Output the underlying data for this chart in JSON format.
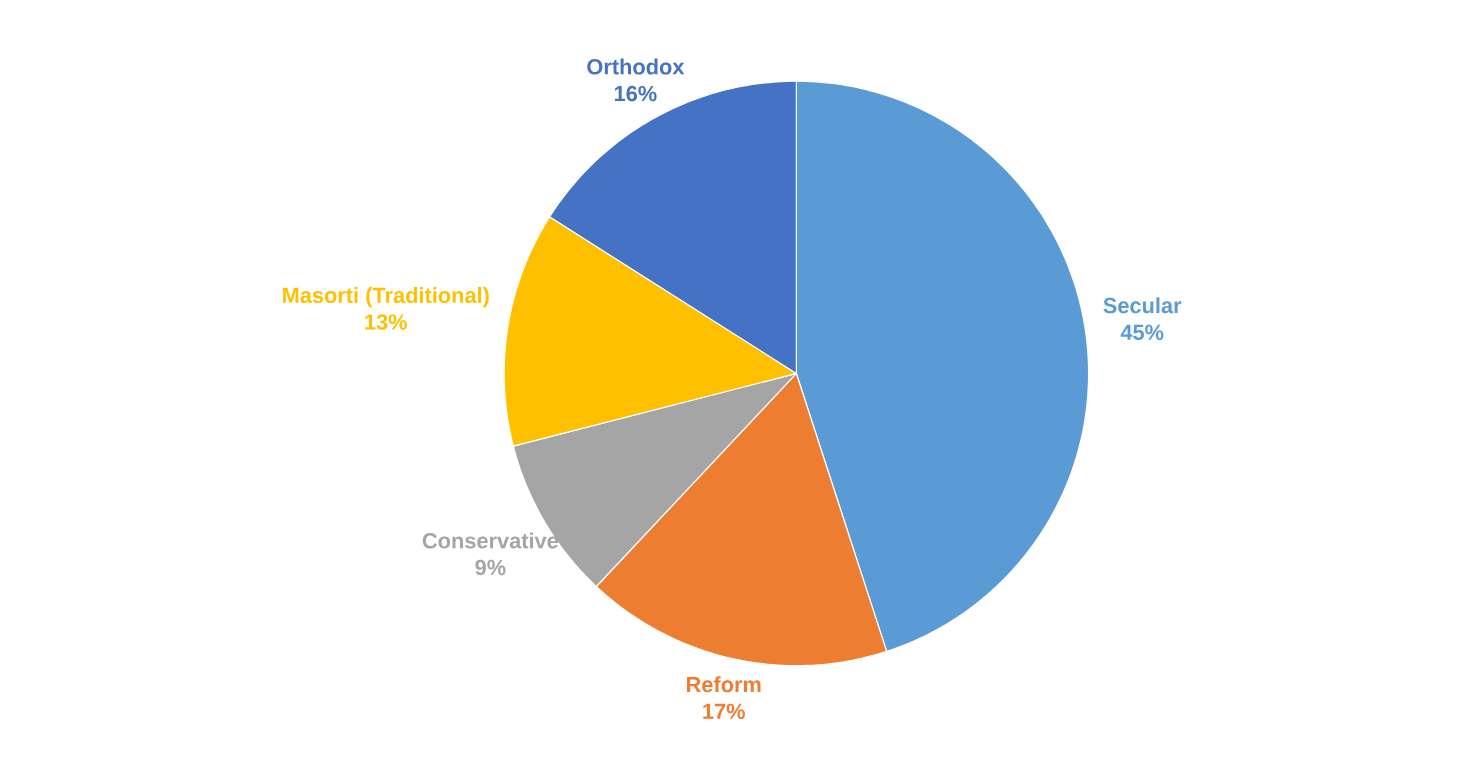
{
  "chart_data": {
    "type": "pie",
    "categories": [
      "Secular",
      "Reform",
      "Conservative",
      "Masorti (Traditional)",
      "Orthodox"
    ],
    "values": [
      45,
      17,
      9,
      13,
      16
    ],
    "value_labels": [
      "45%",
      "17%",
      "9%",
      "13%",
      "16%"
    ],
    "colors": [
      "#5b9bd5",
      "#ed7d31",
      "#a5a5a5",
      "#ffc000",
      "#4472c4"
    ]
  }
}
